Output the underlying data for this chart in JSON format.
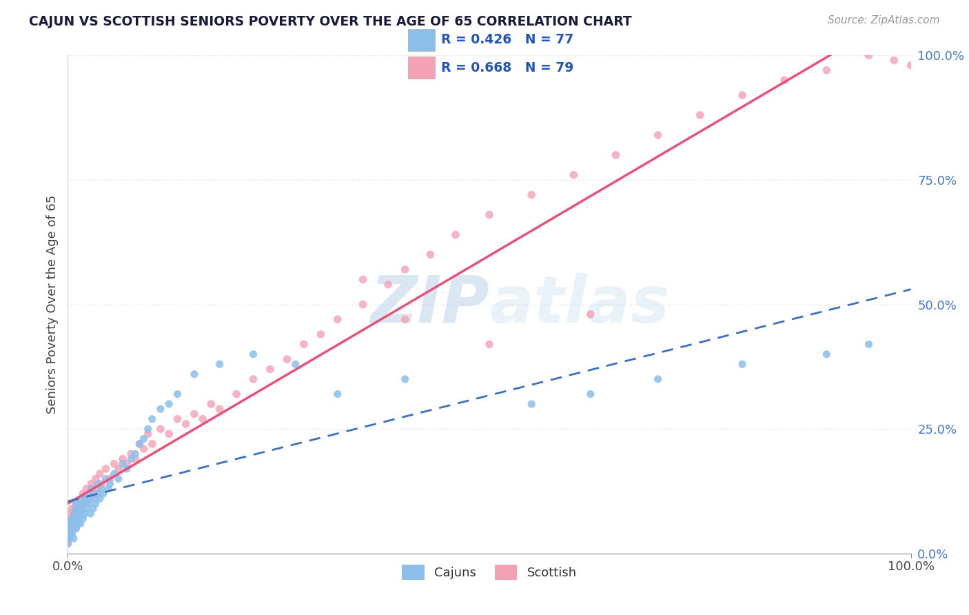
{
  "title": "CAJUN VS SCOTTISH SENIORS POVERTY OVER THE AGE OF 65 CORRELATION CHART",
  "source": "Source: ZipAtlas.com",
  "ylabel": "Seniors Poverty Over the Age of 65",
  "xlim": [
    0,
    1
  ],
  "ylim": [
    0,
    1
  ],
  "xtick_positions": [
    0,
    1.0
  ],
  "xtick_labels": [
    "0.0%",
    "100.0%"
  ],
  "ytick_vals": [
    0,
    0.25,
    0.5,
    0.75,
    1.0
  ],
  "ytick_labels": [
    "0.0%",
    "25.0%",
    "50.0%",
    "75.0%",
    "100.0%"
  ],
  "cajun_color": "#8bbfea",
  "scottish_color": "#f4a0b5",
  "cajun_line_color": "#3b6fc4",
  "scottish_line_color": "#e8527a",
  "dashed_line_color": "#aaaaaa",
  "legend_r_cajun": "R = 0.426",
  "legend_n_cajun": "N = 77",
  "legend_r_scottish": "R = 0.668",
  "legend_n_scottish": "N = 79",
  "watermark_text": "ZIPatlas",
  "background_color": "#ffffff",
  "grid_color": "#e0e0e0",
  "title_color": "#1a1a3a",
  "ytick_color": "#4477cc",
  "xtick_color": "#444444",
  "cajun_scatter_x": [
    0.0,
    0.0,
    0.0,
    0.001,
    0.001,
    0.002,
    0.002,
    0.003,
    0.003,
    0.004,
    0.004,
    0.005,
    0.005,
    0.006,
    0.007,
    0.007,
    0.008,
    0.008,
    0.009,
    0.009,
    0.01,
    0.01,
    0.01,
    0.012,
    0.012,
    0.013,
    0.014,
    0.015,
    0.015,
    0.016,
    0.017,
    0.018,
    0.019,
    0.02,
    0.021,
    0.022,
    0.023,
    0.025,
    0.026,
    0.027,
    0.028,
    0.03,
    0.031,
    0.033,
    0.035,
    0.036,
    0.038,
    0.04,
    0.042,
    0.045,
    0.048,
    0.05,
    0.055,
    0.06,
    0.065,
    0.07,
    0.075,
    0.08,
    0.085,
    0.09,
    0.095,
    0.1,
    0.11,
    0.12,
    0.13,
    0.15,
    0.18,
    0.22,
    0.27,
    0.32,
    0.4,
    0.55,
    0.62,
    0.7,
    0.8,
    0.9,
    0.95
  ],
  "cajun_scatter_y": [
    0.02,
    0.03,
    0.05,
    0.04,
    0.06,
    0.03,
    0.05,
    0.04,
    0.06,
    0.05,
    0.07,
    0.04,
    0.06,
    0.05,
    0.03,
    0.07,
    0.05,
    0.08,
    0.06,
    0.09,
    0.05,
    0.07,
    0.1,
    0.06,
    0.09,
    0.07,
    0.08,
    0.06,
    0.1,
    0.08,
    0.09,
    0.07,
    0.11,
    0.08,
    0.1,
    0.09,
    0.11,
    0.1,
    0.12,
    0.08,
    0.13,
    0.09,
    0.11,
    0.1,
    0.12,
    0.14,
    0.11,
    0.13,
    0.12,
    0.15,
    0.13,
    0.14,
    0.16,
    0.15,
    0.18,
    0.17,
    0.19,
    0.2,
    0.22,
    0.23,
    0.25,
    0.27,
    0.29,
    0.3,
    0.32,
    0.36,
    0.38,
    0.4,
    0.38,
    0.32,
    0.35,
    0.3,
    0.32,
    0.35,
    0.38,
    0.4,
    0.42
  ],
  "scottish_scatter_x": [
    0.0,
    0.0,
    0.0,
    0.001,
    0.001,
    0.002,
    0.003,
    0.003,
    0.004,
    0.005,
    0.005,
    0.006,
    0.007,
    0.008,
    0.009,
    0.01,
    0.01,
    0.012,
    0.013,
    0.015,
    0.016,
    0.018,
    0.02,
    0.022,
    0.025,
    0.028,
    0.03,
    0.033,
    0.035,
    0.038,
    0.04,
    0.045,
    0.05,
    0.055,
    0.06,
    0.065,
    0.07,
    0.075,
    0.08,
    0.085,
    0.09,
    0.095,
    0.1,
    0.11,
    0.12,
    0.13,
    0.14,
    0.15,
    0.16,
    0.17,
    0.18,
    0.2,
    0.22,
    0.24,
    0.26,
    0.28,
    0.3,
    0.32,
    0.35,
    0.38,
    0.4,
    0.43,
    0.46,
    0.5,
    0.55,
    0.6,
    0.65,
    0.7,
    0.75,
    0.8,
    0.85,
    0.9,
    0.95,
    0.98,
    1.0,
    0.35,
    0.4,
    0.5,
    0.62
  ],
  "scottish_scatter_y": [
    0.02,
    0.04,
    0.06,
    0.03,
    0.05,
    0.04,
    0.06,
    0.08,
    0.05,
    0.07,
    0.09,
    0.06,
    0.08,
    0.07,
    0.09,
    0.06,
    0.1,
    0.08,
    0.09,
    0.1,
    0.11,
    0.12,
    0.1,
    0.13,
    0.11,
    0.14,
    0.12,
    0.15,
    0.13,
    0.16,
    0.14,
    0.17,
    0.15,
    0.18,
    0.17,
    0.19,
    0.18,
    0.2,
    0.19,
    0.22,
    0.21,
    0.24,
    0.22,
    0.25,
    0.24,
    0.27,
    0.26,
    0.28,
    0.27,
    0.3,
    0.29,
    0.32,
    0.35,
    0.37,
    0.39,
    0.42,
    0.44,
    0.47,
    0.5,
    0.54,
    0.57,
    0.6,
    0.64,
    0.68,
    0.72,
    0.76,
    0.8,
    0.84,
    0.88,
    0.92,
    0.95,
    0.97,
    1.0,
    0.99,
    0.98,
    0.55,
    0.47,
    0.42,
    0.48
  ]
}
